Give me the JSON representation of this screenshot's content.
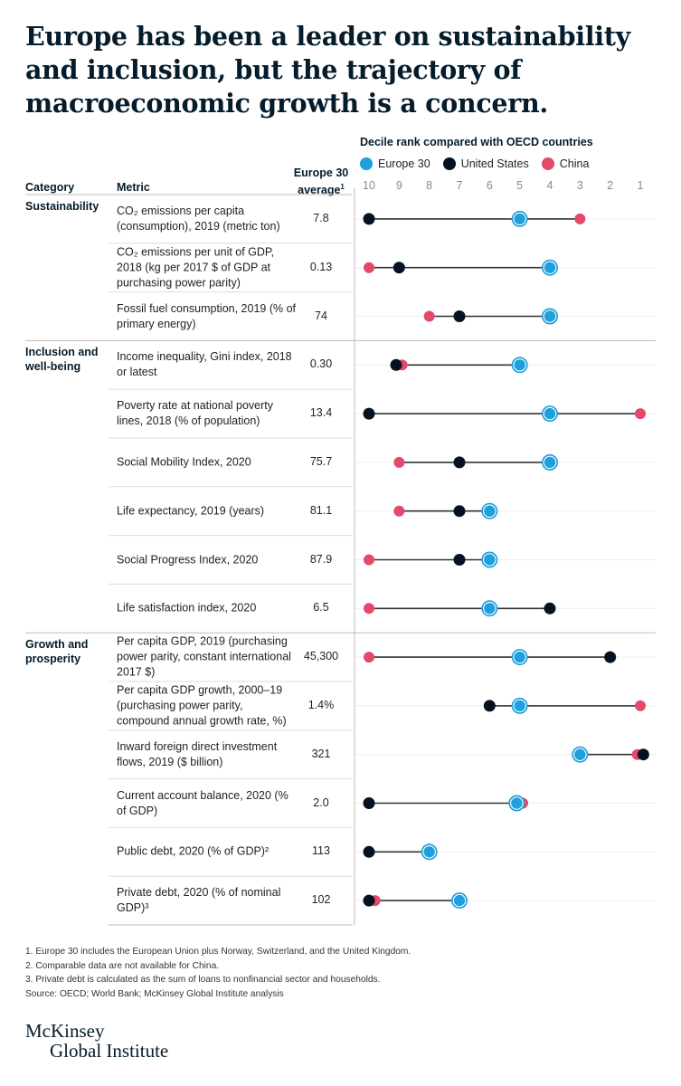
{
  "title": "Europe has been a leader on sustainability and inclusion, but the trajectory of macroeconomic growth is a concern.",
  "headers": {
    "category": "Category",
    "metric": "Metric",
    "value_line1": "Europe 30",
    "value_line2": "average",
    "value_sup": "1"
  },
  "chart_data": {
    "type": "dot-range",
    "title": "Decile rank compared with OECD countries",
    "x_ticks": [
      "10",
      "9",
      "8",
      "7",
      "6",
      "5",
      "4",
      "3",
      "2",
      "1"
    ],
    "xlim": [
      10,
      1
    ],
    "grid": true,
    "legend": [
      {
        "name": "Europe 30",
        "color": "#1f9fdb"
      },
      {
        "name": "United States",
        "color": "#061220"
      },
      {
        "name": "China",
        "color": "#e5496a"
      }
    ],
    "groups": [
      {
        "category": "Sustainability",
        "rows": [
          {
            "metric": "CO₂ emissions per capita (consumption), 2019 (metric ton)",
            "value": "7.8",
            "europe": 5,
            "us": 10,
            "china": 3
          },
          {
            "metric": "CO₂ emissions per unit of GDP, 2018 (kg per 2017 $ of GDP at purchasing power parity)",
            "value": "0.13",
            "europe": 4,
            "us": 9,
            "china": 10
          },
          {
            "metric": "Fossil fuel consumption, 2019 (% of primary energy)",
            "value": "74",
            "europe": 4,
            "us": 7,
            "china": 8
          }
        ]
      },
      {
        "category": "Inclusion and well-being",
        "rows": [
          {
            "metric": "Income inequality, Gini index, 2018 or latest",
            "value": "0.30",
            "europe": 5,
            "us": 9.1,
            "china": 8.9
          },
          {
            "metric": "Poverty rate at national poverty lines, 2018 (% of population)",
            "value": "13.4",
            "europe": 4,
            "us": 10,
            "china": 1
          },
          {
            "metric": "Social Mobility Index, 2020",
            "value": "75.7",
            "europe": 4,
            "us": 7,
            "china": 9
          },
          {
            "metric": "Life expectancy, 2019 (years)",
            "value": "81.1",
            "europe": 6,
            "us": 7,
            "china": 9
          },
          {
            "metric": "Social Progress Index, 2020",
            "value": "87.9",
            "europe": 6,
            "us": 7,
            "china": 10
          },
          {
            "metric": "Life satisfaction index, 2020",
            "value": "6.5",
            "europe": 6,
            "us": 4,
            "china": 10
          }
        ]
      },
      {
        "category": "Growth and prosperity",
        "rows": [
          {
            "metric": "Per capita GDP, 2019 (purchasing power parity, constant international 2017 $)",
            "value": "45,300",
            "europe": 5,
            "us": 2,
            "china": 10
          },
          {
            "metric": "Per capita GDP growth, 2000–19 (purchasing power parity, compound annual growth rate, %)",
            "value": "1.4%",
            "europe": 5,
            "us": 6,
            "china": 1
          },
          {
            "metric": "Inward foreign direct investment flows, 2019 ($ billion)",
            "value": "321",
            "europe": 3,
            "us": 0.9,
            "china": 1.1
          },
          {
            "metric": "Current account balance, 2020 (% of GDP)",
            "value": "2.0",
            "europe": 5.1,
            "us": 10,
            "china": 4.9
          },
          {
            "metric": "Public debt, 2020 (% of GDP)²",
            "value": "113",
            "europe": 8,
            "us": 10,
            "china": null
          },
          {
            "metric": "Private debt, 2020 (% of nominal GDP)³",
            "value": "102",
            "europe": 7,
            "us": 10,
            "china": 9.8
          }
        ]
      }
    ]
  },
  "footnotes": [
    "1. Europe 30 includes the European Union plus Norway, Switzerland, and the United Kingdom.",
    "2. Comparable data are not available for China.",
    "3. Private debt is calculated as the sum of loans to nonfinancial sector and households.",
    "Source: OECD; World Bank; McKinsey Global Institute analysis"
  ],
  "logo": {
    "line1": "McKinsey",
    "line2": "Global Institute"
  }
}
